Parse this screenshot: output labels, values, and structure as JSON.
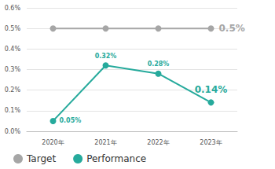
{
  "chart_data": {
    "type": "line",
    "categories": [
      "2020年",
      "2021年",
      "2022年",
      "2023年"
    ],
    "series": [
      {
        "name": "Target",
        "color": "#a6a6a6",
        "values": [
          0.5,
          0.5,
          0.5,
          0.5
        ],
        "value_labels": [
          null,
          null,
          null,
          "0.5%"
        ],
        "marker": "circle",
        "line_style": "solid"
      },
      {
        "name": "Performance",
        "color": "#26aa9c",
        "values": [
          0.05,
          0.32,
          0.28,
          0.14
        ],
        "value_labels": [
          "0.05%",
          "0.32%",
          "0.28%",
          "0.14%"
        ],
        "marker": "circle",
        "line_style": "solid"
      }
    ],
    "ylim": [
      0,
      0.6
    ],
    "yticks": [
      {
        "value": 0,
        "label": "0.0%"
      },
      {
        "value": 0.1,
        "label": "0.1%"
      },
      {
        "value": 0.2,
        "label": "0.2%"
      },
      {
        "value": 0.3,
        "label": "0.3%"
      },
      {
        "value": 0.4,
        "label": "0.4%"
      },
      {
        "value": 0.5,
        "label": "0.5%"
      },
      {
        "value": 0.6,
        "label": "0.6%"
      }
    ],
    "grid": true,
    "legend": "bottom",
    "data_labels": true
  }
}
